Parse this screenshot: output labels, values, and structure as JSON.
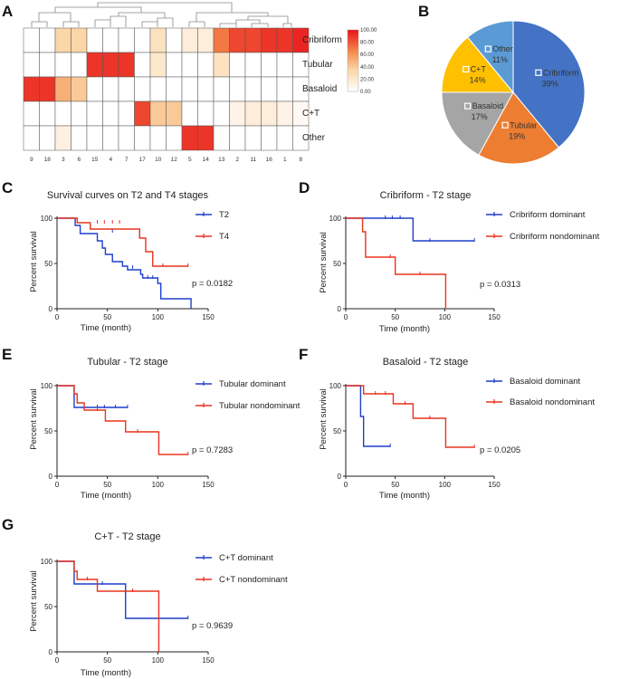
{
  "panels": {
    "A": "A",
    "B": "B",
    "C": "C",
    "D": "D",
    "E": "E",
    "F": "F",
    "G": "G"
  },
  "colors": {
    "t2": "#1f3fcc",
    "t4": "#e8331f",
    "dominant": "#1f3fcc",
    "nondominant": "#e8331f"
  },
  "chart_data": [
    {
      "id": "A",
      "type": "heatmap",
      "title": "",
      "rows": [
        "Cribriform",
        "Tubular",
        "Basaloid",
        "C+T",
        "Other"
      ],
      "columns": [
        "9",
        "18",
        "3",
        "6",
        "15",
        "4",
        "7",
        "17",
        "10",
        "12",
        "5",
        "14",
        "13",
        "2",
        "11",
        "16",
        "1",
        "8"
      ],
      "values": [
        [
          0,
          0,
          35,
          35,
          0,
          0,
          0,
          0,
          25,
          0,
          15,
          15,
          70,
          85,
          85,
          90,
          90,
          95
        ],
        [
          0,
          0,
          0,
          0,
          90,
          90,
          90,
          0,
          20,
          0,
          0,
          0,
          25,
          0,
          0,
          0,
          0,
          0
        ],
        [
          90,
          90,
          50,
          40,
          0,
          0,
          0,
          0,
          0,
          0,
          0,
          0,
          0,
          0,
          0,
          0,
          0,
          0
        ],
        [
          0,
          0,
          0,
          0,
          0,
          0,
          0,
          85,
          40,
          40,
          0,
          0,
          0,
          10,
          15,
          15,
          10,
          5
        ],
        [
          0,
          0,
          12,
          0,
          0,
          0,
          0,
          0,
          0,
          0,
          90,
          90,
          0,
          0,
          0,
          0,
          0,
          0
        ]
      ],
      "colorbar": {
        "ticks": [
          "100.00",
          "80.00",
          "60.00",
          "40.00",
          "20.00",
          "0.00"
        ],
        "min": 0,
        "max": 100
      }
    },
    {
      "id": "B",
      "type": "pie",
      "labels": [
        "Cribriform",
        "Tubular",
        "Basaloid",
        "C+T",
        "Other"
      ],
      "values": [
        39,
        19,
        17,
        14,
        11
      ],
      "percent_labels": [
        "39%",
        "19%",
        "17%",
        "14%",
        "11%"
      ],
      "colors": [
        "#4472c4",
        "#ed7d31",
        "#a5a5a5",
        "#ffc000",
        "#5b9bd5"
      ]
    },
    {
      "id": "C",
      "type": "line",
      "title": "Survival curves on T2 and T4 stages",
      "xlabel": "Time (month)",
      "ylabel": "Percent survival",
      "xlim": [
        0,
        150
      ],
      "ylim": [
        0,
        100
      ],
      "xticks": [
        "0",
        "50",
        "100",
        "150"
      ],
      "yticks": [
        "0",
        "50",
        "100"
      ],
      "pvalue": "p = 0.0182",
      "series": [
        {
          "name": "T2",
          "color": "#1f3fcc",
          "steps": [
            [
              0,
              100
            ],
            [
              18,
              100
            ],
            [
              18,
              92
            ],
            [
              23,
              92
            ],
            [
              23,
              83
            ],
            [
              40,
              83
            ],
            [
              40,
              75
            ],
            [
              45,
              75
            ],
            [
              45,
              67
            ],
            [
              48,
              67
            ],
            [
              48,
              60
            ],
            [
              55,
              60
            ],
            [
              55,
              52
            ],
            [
              65,
              52
            ],
            [
              65,
              47
            ],
            [
              70,
              47
            ],
            [
              70,
              43
            ],
            [
              83,
              43
            ],
            [
              83,
              38
            ],
            [
              85,
              38
            ],
            [
              85,
              34
            ],
            [
              100,
              34
            ],
            [
              100,
              28
            ],
            [
              103,
              28
            ],
            [
              103,
              11
            ],
            [
              133,
              11
            ],
            [
              133,
              0
            ]
          ],
          "censor": [
            [
              55,
              85
            ],
            [
              75,
              45
            ],
            [
              90,
              34
            ],
            [
              95,
              34
            ]
          ]
        },
        {
          "name": "T4",
          "color": "#e8331f",
          "steps": [
            [
              0,
              100
            ],
            [
              20,
              100
            ],
            [
              20,
              95
            ],
            [
              33,
              95
            ],
            [
              33,
              88
            ],
            [
              82,
              88
            ],
            [
              82,
              78
            ],
            [
              88,
              78
            ],
            [
              88,
              63
            ],
            [
              95,
              63
            ],
            [
              95,
              47
            ],
            [
              130,
              47
            ]
          ],
          "censor": [
            [
              40,
              95
            ],
            [
              47,
              95
            ],
            [
              55,
              95
            ],
            [
              62,
              95
            ],
            [
              105,
              47
            ],
            [
              130,
              47
            ]
          ]
        }
      ]
    },
    {
      "id": "D",
      "type": "line",
      "title": "Cribriform - T2 stage",
      "xlabel": "Time (month)",
      "ylabel": "Percent survival",
      "xlim": [
        0,
        150
      ],
      "ylim": [
        0,
        100
      ],
      "xticks": [
        "0",
        "50",
        "100",
        "150"
      ],
      "yticks": [
        "0",
        "50",
        "100"
      ],
      "pvalue": "p = 0.0313",
      "series": [
        {
          "name": "Cribriform dominant",
          "color": "#1f3fcc",
          "steps": [
            [
              0,
              100
            ],
            [
              68,
              100
            ],
            [
              68,
              75
            ],
            [
              130,
              75
            ]
          ],
          "censor": [
            [
              40,
              100
            ],
            [
              47,
              100
            ],
            [
              55,
              100
            ],
            [
              85,
              75
            ],
            [
              130,
              75
            ]
          ]
        },
        {
          "name": "Cribriform nondominant",
          "color": "#e8331f",
          "steps": [
            [
              0,
              100
            ],
            [
              17,
              100
            ],
            [
              17,
              85
            ],
            [
              20,
              85
            ],
            [
              20,
              57
            ],
            [
              50,
              57
            ],
            [
              50,
              38
            ],
            [
              101,
              38
            ],
            [
              101,
              0
            ]
          ],
          "censor": [
            [
              45,
              57
            ],
            [
              75,
              38
            ]
          ]
        }
      ]
    },
    {
      "id": "E",
      "type": "line",
      "title": "Tubular - T2 stage",
      "xlabel": "Time (month)",
      "ylabel": "Percent survival",
      "xlim": [
        0,
        150
      ],
      "ylim": [
        0,
        100
      ],
      "xticks": [
        "0",
        "50",
        "100",
        "150"
      ],
      "yticks": [
        "0",
        "50",
        "100"
      ],
      "pvalue": "p = 0.7283",
      "series": [
        {
          "name": "Tubular dominant",
          "color": "#1f3fcc",
          "steps": [
            [
              0,
              100
            ],
            [
              17,
              100
            ],
            [
              17,
              76
            ],
            [
              70,
              76
            ]
          ],
          "censor": [
            [
              40,
              76
            ],
            [
              47,
              76
            ],
            [
              58,
              76
            ],
            [
              70,
              76
            ]
          ]
        },
        {
          "name": "Tubular nondominant",
          "color": "#e8331f",
          "steps": [
            [
              0,
              100
            ],
            [
              17,
              100
            ],
            [
              17,
              91
            ],
            [
              20,
              91
            ],
            [
              20,
              81
            ],
            [
              27,
              81
            ],
            [
              27,
              73
            ],
            [
              48,
              73
            ],
            [
              48,
              61
            ],
            [
              68,
              61
            ],
            [
              68,
              49
            ],
            [
              101,
              49
            ],
            [
              101,
              24
            ],
            [
              130,
              24
            ]
          ],
          "censor": [
            [
              40,
              73
            ],
            [
              80,
              49
            ],
            [
              130,
              24
            ]
          ]
        }
      ]
    },
    {
      "id": "F",
      "type": "line",
      "title": "Basaloid - T2 stage",
      "xlabel": "Time (month)",
      "ylabel": "Percent survival",
      "xlim": [
        0,
        150
      ],
      "ylim": [
        0,
        100
      ],
      "xticks": [
        "0",
        "50",
        "100",
        "150"
      ],
      "yticks": [
        "0",
        "50",
        "100"
      ],
      "pvalue": "p = 0.0205",
      "series": [
        {
          "name": "Basaloid dominant",
          "color": "#1f3fcc",
          "steps": [
            [
              0,
              100
            ],
            [
              15,
              100
            ],
            [
              15,
              66
            ],
            [
              18,
              66
            ],
            [
              18,
              33
            ],
            [
              45,
              33
            ]
          ],
          "censor": [
            [
              45,
              33
            ]
          ]
        },
        {
          "name": "Basaloid nondominant",
          "color": "#e8331f",
          "steps": [
            [
              0,
              100
            ],
            [
              18,
              100
            ],
            [
              18,
              91
            ],
            [
              48,
              91
            ],
            [
              48,
              80
            ],
            [
              68,
              80
            ],
            [
              68,
              64
            ],
            [
              101,
              64
            ],
            [
              101,
              32
            ],
            [
              130,
              32
            ]
          ],
          "censor": [
            [
              30,
              91
            ],
            [
              40,
              91
            ],
            [
              60,
              80
            ],
            [
              85,
              64
            ],
            [
              130,
              32
            ]
          ]
        }
      ]
    },
    {
      "id": "G",
      "type": "line",
      "title": "C+T - T2 stage",
      "xlabel": "Time (month)",
      "ylabel": "Percent survival",
      "xlim": [
        0,
        150
      ],
      "ylim": [
        0,
        100
      ],
      "xticks": [
        "0",
        "50",
        "100",
        "150"
      ],
      "yticks": [
        "0",
        "50",
        "100"
      ],
      "pvalue": "p = 0.9639",
      "series": [
        {
          "name": "C+T dominant",
          "color": "#1f3fcc",
          "steps": [
            [
              0,
              100
            ],
            [
              17,
              100
            ],
            [
              17,
              75
            ],
            [
              68,
              75
            ],
            [
              68,
              37
            ],
            [
              130,
              37
            ]
          ],
          "censor": [
            [
              45,
              75
            ],
            [
              130,
              37
            ]
          ]
        },
        {
          "name": "C+T nondominant",
          "color": "#e8331f",
          "steps": [
            [
              0,
              100
            ],
            [
              17,
              100
            ],
            [
              17,
              89
            ],
            [
              20,
              89
            ],
            [
              20,
              80
            ],
            [
              40,
              80
            ],
            [
              40,
              67
            ],
            [
              101,
              67
            ],
            [
              101,
              0
            ]
          ],
          "censor": [
            [
              30,
              80
            ],
            [
              75,
              67
            ]
          ]
        }
      ]
    }
  ]
}
